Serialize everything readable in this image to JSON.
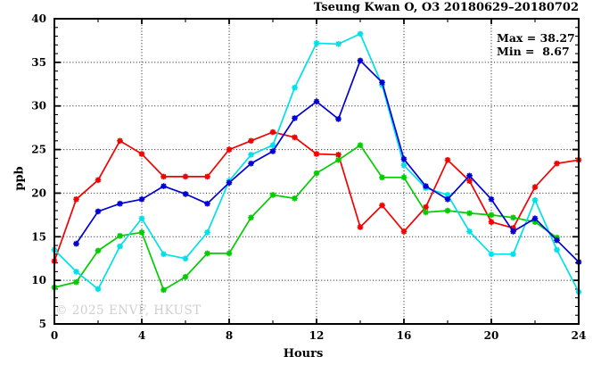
{
  "watermark": "© 2025 ENVF, HKUST",
  "annotation": {
    "max_label": "Max = 38.27",
    "min_label": "Min =  8.67"
  },
  "chart_data": {
    "type": "line",
    "title": "Tseung Kwan O, O3 20180629–20180702",
    "xlabel": "Hours",
    "ylabel": "ppb",
    "xlim": [
      0,
      24
    ],
    "ylim": [
      5,
      40
    ],
    "x_major_ticks": [
      0,
      4,
      8,
      12,
      16,
      20,
      24
    ],
    "x_minor_tick_step": 2,
    "y_major_ticks": [
      5,
      10,
      15,
      20,
      25,
      30,
      35,
      40
    ],
    "y_minor_tick_step": 1,
    "grid": {
      "style": "dotted",
      "vertical_at": [
        4,
        8,
        12,
        16,
        20
      ],
      "horizontal_at": [
        10,
        15,
        20,
        25,
        30,
        35
      ]
    },
    "legend_position": "none",
    "stats": {
      "max": 38.27,
      "min": 8.67
    },
    "marker": "asterisk",
    "x": [
      0,
      1,
      2,
      3,
      4,
      5,
      6,
      7,
      8,
      9,
      10,
      11,
      12,
      13,
      14,
      15,
      16,
      17,
      18,
      19,
      20,
      21,
      22,
      23,
      24
    ],
    "series": [
      {
        "name": "day-red",
        "color": "#f40000",
        "values": [
          12.2,
          19.3,
          21.5,
          26.0,
          24.5,
          21.9,
          21.9,
          21.9,
          25.0,
          26.0,
          27.0,
          26.4,
          24.5,
          24.4,
          16.1,
          18.6,
          15.6,
          18.4,
          23.8,
          21.4,
          16.7,
          16.0,
          20.7,
          23.4,
          23.8
        ]
      },
      {
        "name": "day-green",
        "color": "#00cc00",
        "values": [
          9.2,
          9.8,
          13.4,
          15.1,
          15.5,
          8.9,
          10.4,
          13.1,
          13.1,
          17.2,
          19.8,
          19.4,
          22.3,
          23.8,
          25.5,
          21.8,
          21.8,
          17.8,
          18.0,
          17.7,
          17.5,
          17.2,
          16.7,
          14.9,
          null
        ]
      },
      {
        "name": "day-cyan",
        "color": "#00e0e8",
        "values": [
          13.5,
          11.0,
          9.0,
          13.9,
          17.1,
          13.0,
          12.5,
          15.5,
          21.4,
          24.4,
          25.5,
          32.1,
          37.2,
          37.1,
          38.27,
          32.4,
          23.2,
          20.6,
          19.8,
          15.6,
          13.0,
          13.0,
          19.2,
          13.5,
          8.67
        ]
      },
      {
        "name": "day-blue",
        "color": "#0000d6",
        "values": [
          null,
          14.2,
          17.9,
          18.8,
          19.3,
          20.8,
          19.9,
          18.8,
          21.2,
          23.4,
          24.8,
          28.6,
          30.5,
          28.5,
          35.2,
          32.7,
          23.9,
          20.8,
          19.3,
          22.0,
          19.3,
          15.6,
          17.1,
          14.6,
          12.1
        ]
      }
    ]
  }
}
